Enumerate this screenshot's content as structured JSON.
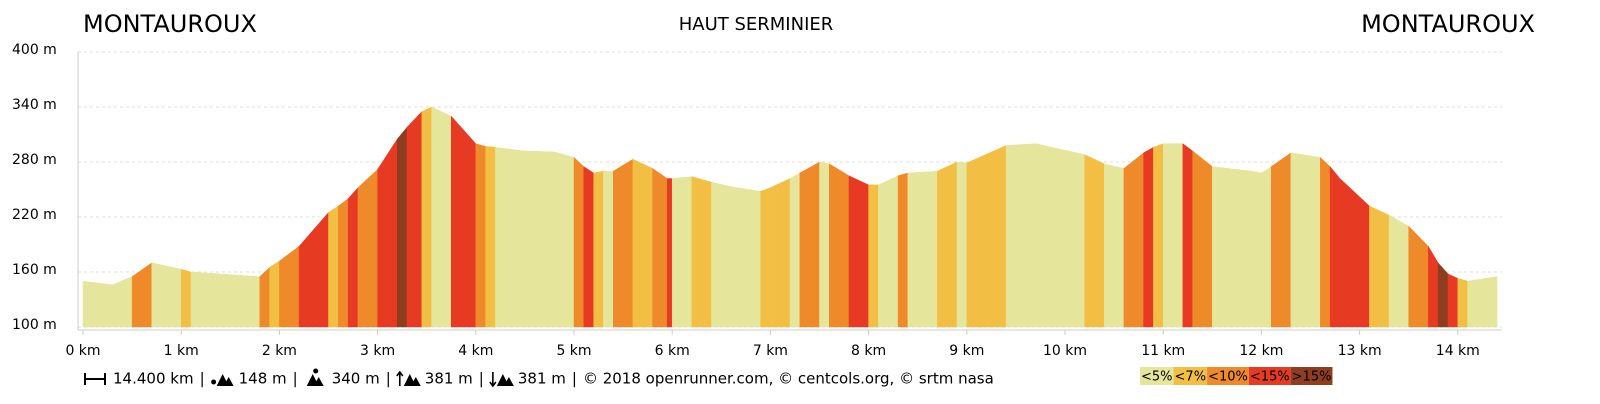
{
  "chart_data": {
    "type": "elevation-profile",
    "title": "HAUT SERMINIER",
    "start_label": "MONTAUROUX",
    "end_label": "MONTAUROUX",
    "xlim": [
      0,
      14.4
    ],
    "ylim": [
      100,
      400
    ],
    "xticks": [
      {
        "value": 0,
        "label": "0 km"
      },
      {
        "value": 1,
        "label": "1 km"
      },
      {
        "value": 2,
        "label": "2 km"
      },
      {
        "value": 3,
        "label": "3 km"
      },
      {
        "value": 4,
        "label": "4 km"
      },
      {
        "value": 5,
        "label": "5 km"
      },
      {
        "value": 6,
        "label": "6 km"
      },
      {
        "value": 7,
        "label": "7 km"
      },
      {
        "value": 8,
        "label": "8 km"
      },
      {
        "value": 9,
        "label": "9 km"
      },
      {
        "value": 10,
        "label": "10 km"
      },
      {
        "value": 11,
        "label": "11 km"
      },
      {
        "value": 12,
        "label": "12 km"
      },
      {
        "value": 13,
        "label": "13 km"
      },
      {
        "value": 14,
        "label": "14 km"
      }
    ],
    "yticks": [
      {
        "value": 100,
        "label": "100 m"
      },
      {
        "value": 160,
        "label": "160 m"
      },
      {
        "value": 220,
        "label": "220 m"
      },
      {
        "value": 280,
        "label": "280 m"
      },
      {
        "value": 340,
        "label": "340 m"
      },
      {
        "value": 400,
        "label": "400 m"
      }
    ],
    "grid": true,
    "grade_classes": [
      {
        "name": "<5%",
        "color": "#e5e59b"
      },
      {
        "name": "<7%",
        "color": "#f2bf44"
      },
      {
        "name": "<10%",
        "color": "#ef8a2b"
      },
      {
        "name": "<15%",
        "color": "#e73a23"
      },
      {
        "name": ">15%",
        "color": "#8e3e1f"
      }
    ],
    "x": [
      0,
      0.3,
      0.5,
      0.7,
      1.0,
      1.1,
      1.8,
      1.9,
      2.0,
      2.2,
      2.5,
      2.6,
      2.7,
      2.8,
      3.0,
      3.2,
      3.3,
      3.45,
      3.55,
      3.75,
      4.0,
      4.1,
      4.2,
      4.5,
      4.8,
      5.0,
      5.1,
      5.2,
      5.3,
      5.4,
      5.6,
      5.8,
      5.95,
      6.0,
      6.2,
      6.4,
      6.6,
      6.9,
      7.0,
      7.2,
      7.3,
      7.5,
      7.6,
      7.8,
      8.0,
      8.1,
      8.3,
      8.4,
      8.7,
      8.9,
      9.0,
      9.4,
      9.7,
      10.2,
      10.4,
      10.6,
      10.8,
      10.9,
      11.0,
      11.2,
      11.3,
      11.5,
      11.9,
      12.0,
      12.1,
      12.3,
      12.6,
      12.7,
      12.8,
      13.1,
      13.3,
      13.5,
      13.7,
      13.8,
      13.9,
      14.0,
      14.1,
      14.4
    ],
    "values": [
      150,
      146,
      155,
      170,
      163,
      160,
      155,
      165,
      172,
      188,
      225,
      232,
      240,
      252,
      272,
      305,
      318,
      335,
      340,
      330,
      300,
      297,
      296,
      292,
      291,
      285,
      275,
      268,
      270,
      270,
      283,
      273,
      262,
      262,
      264,
      258,
      253,
      248,
      252,
      262,
      268,
      280,
      278,
      265,
      255,
      255,
      265,
      268,
      270,
      280,
      279,
      298,
      300,
      288,
      278,
      273,
      290,
      296,
      300,
      300,
      292,
      275,
      270,
      268,
      275,
      290,
      285,
      275,
      262,
      232,
      222,
      210,
      188,
      170,
      158,
      153,
      150,
      155
    ],
    "grade_class": [
      null,
      0,
      0,
      2,
      0,
      1,
      0,
      2,
      1,
      2,
      3,
      1,
      2,
      3,
      2,
      3,
      4,
      3,
      1,
      0,
      3,
      2,
      1,
      0,
      0,
      0,
      2,
      3,
      1,
      0,
      2,
      1,
      2,
      3,
      0,
      1,
      0,
      0,
      1,
      1,
      0,
      2,
      0,
      2,
      3,
      1,
      0,
      2,
      0,
      1,
      0,
      1,
      0,
      0,
      1,
      0,
      2,
      3,
      1,
      0,
      3,
      2,
      0,
      0,
      0,
      2,
      0,
      2,
      3,
      3,
      1,
      0,
      2,
      3,
      4,
      3,
      1,
      0
    ]
  },
  "footer": {
    "distance": "14.400 km",
    "min_elevation": "148 m",
    "max_elevation": "340 m",
    "ascent": "381 m",
    "descent": "381 m",
    "separator": "|",
    "credits": "© 2018 openrunner.com, © centcols.org, © srtm nasa"
  }
}
